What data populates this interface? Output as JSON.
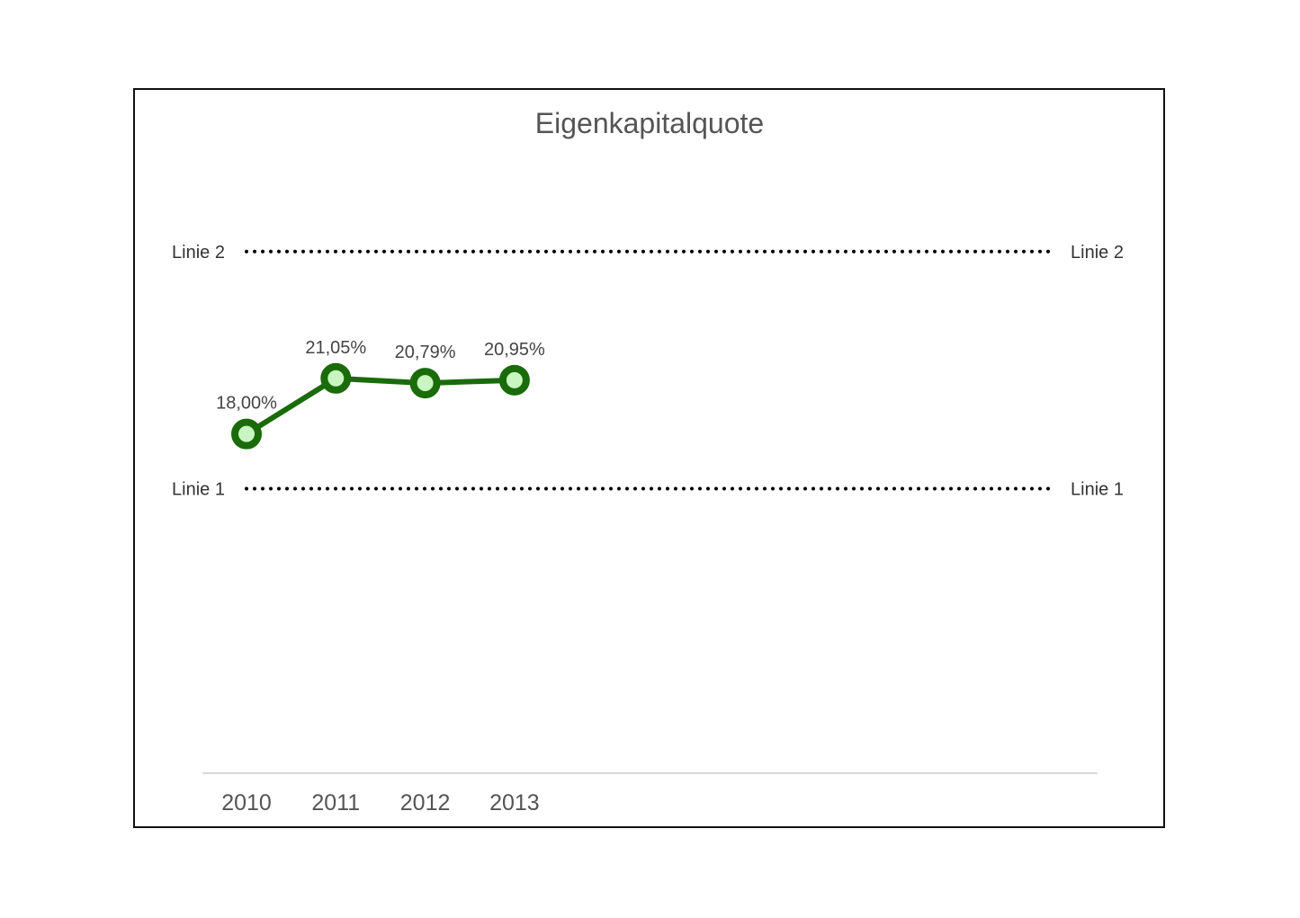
{
  "chart_data": {
    "type": "line",
    "title": "Eigenkapitalquote",
    "xlabel": "",
    "ylabel": "",
    "categories": [
      "2010",
      "2011",
      "2012",
      "2013"
    ],
    "series": [
      {
        "values": [
          18.0,
          21.05,
          20.79,
          20.95
        ],
        "labels": [
          "18,00%",
          "21,05%",
          "20,79%",
          "20,95%"
        ],
        "color": "#1a6b0a",
        "marker_fill": "#c8f5c0"
      }
    ],
    "reference_lines": [
      {
        "name": "Linie 2",
        "value": 28.0,
        "label_left": "Linie 2",
        "label_right": "Linie 2",
        "style": "dotted",
        "color": "#000000"
      },
      {
        "name": "Linie 1",
        "value": 15.0,
        "label_left": "Linie 1",
        "label_right": "Linie 1",
        "style": "dotted",
        "color": "#000000"
      }
    ],
    "ylim": [
      -0.6,
      34.3
    ],
    "grid": false,
    "legend": "none"
  }
}
